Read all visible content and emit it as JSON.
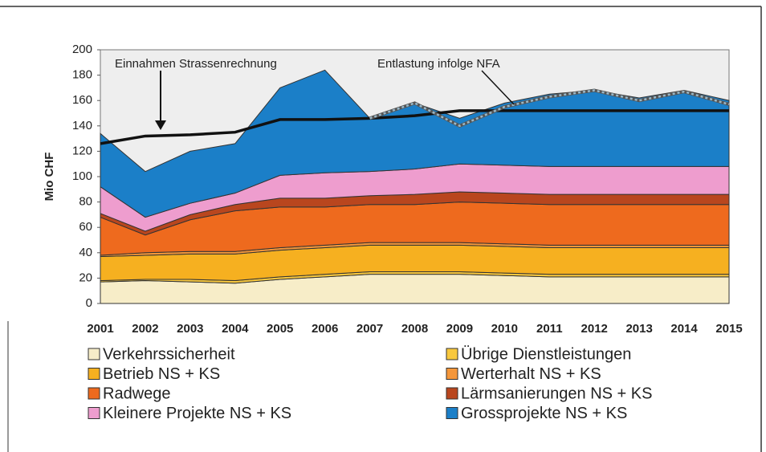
{
  "chart_data": {
    "type": "stacked_area",
    "ylabel": "Mio CHF",
    "categories": [
      "2001",
      "2002",
      "2003",
      "2004",
      "2005",
      "2006",
      "2007",
      "2008",
      "2009",
      "2010",
      "2011",
      "2012",
      "2013",
      "2014",
      "2015"
    ],
    "ylim": [
      0,
      200
    ],
    "yticks": [
      0,
      20,
      40,
      60,
      80,
      100,
      120,
      140,
      160,
      180,
      200
    ],
    "series": [
      {
        "name": "Verkehrssicherheit",
        "color": "#f7edc8",
        "values": [
          17,
          18,
          17,
          16,
          19,
          21,
          23,
          23,
          23,
          22,
          21,
          21,
          21,
          21,
          21
        ]
      },
      {
        "name": "Übrige Dienstleistungen",
        "color": "#f8c83e",
        "values": [
          1,
          1,
          2,
          2,
          2,
          2,
          2,
          2,
          2,
          2,
          2,
          2,
          2,
          2,
          2
        ]
      },
      {
        "name": "Betrieb NS + KS",
        "color": "#f6b020",
        "values": [
          19,
          19,
          20,
          21,
          21,
          21,
          21,
          21,
          21,
          21,
          21,
          21,
          21,
          21,
          21
        ]
      },
      {
        "name": "Werterhalt NS + KS",
        "color": "#f4963a",
        "values": [
          1,
          2,
          2,
          2,
          2,
          2,
          2,
          2,
          2,
          2,
          2,
          2,
          2,
          2,
          2
        ]
      },
      {
        "name": "Radwege",
        "color": "#ee6a1e",
        "values": [
          30,
          14,
          25,
          32,
          32,
          30,
          30,
          30,
          32,
          32,
          32,
          32,
          32,
          32,
          32
        ]
      },
      {
        "name": "Lärmsanierungen NS + KS",
        "color": "#b9461e",
        "values": [
          3,
          3,
          4,
          5,
          7,
          7,
          7,
          8,
          8,
          8,
          8,
          8,
          8,
          8,
          8
        ]
      },
      {
        "name": "Kleinere Projekte NS + KS",
        "color": "#ee9dce",
        "values": [
          21,
          11,
          9,
          9,
          18,
          20,
          19,
          20,
          22,
          22,
          22,
          22,
          22,
          22,
          22
        ]
      },
      {
        "name": "Grossprojekte NS + KS",
        "color": "#1b7fc8",
        "values": [
          42,
          36,
          41,
          39,
          69,
          81,
          42,
          52,
          36,
          49,
          57,
          60,
          54,
          60,
          52
        ]
      }
    ],
    "lines": [
      {
        "name": "Einnahmen Strassenrechnung",
        "color": "#111111",
        "values": [
          126,
          132,
          133,
          135,
          145,
          145,
          146,
          148,
          152,
          152,
          152,
          152,
          152,
          152,
          152
        ]
      },
      {
        "name": "Entlastung infolge NFA",
        "color": "#9ab8c8",
        "dashed": true,
        "values": [
          null,
          null,
          null,
          null,
          null,
          null,
          146,
          158,
          140,
          155,
          163,
          168,
          160,
          167,
          157
        ]
      }
    ],
    "grid": false
  }
}
